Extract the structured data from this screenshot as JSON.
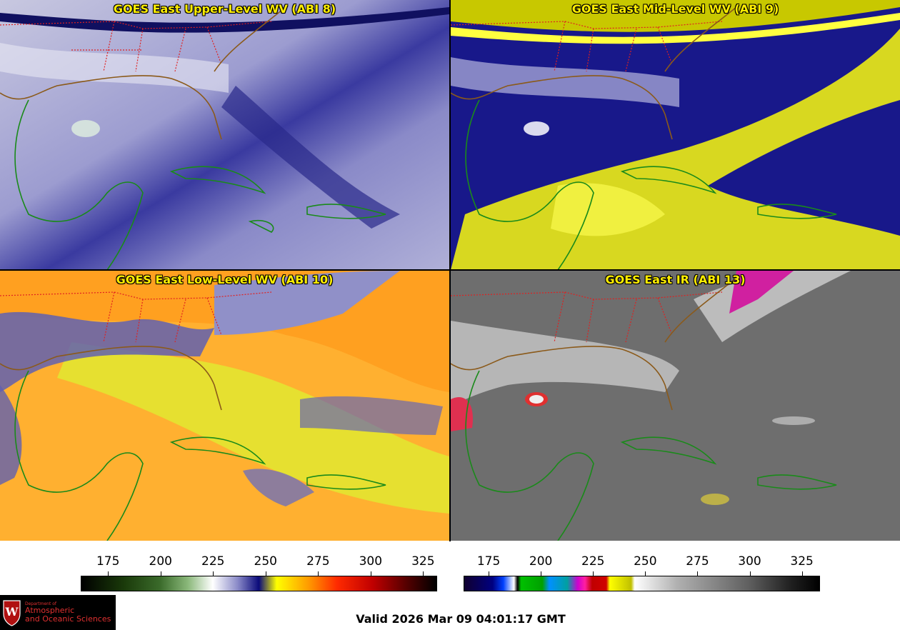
{
  "panels": [
    {
      "title": "GOES East Upper-Level WV (ABI 8)"
    },
    {
      "title": "GOES East Mid-Level WV (ABI 9)"
    },
    {
      "title": "GOES East Low-Level WV (ABI 10)"
    },
    {
      "title": "GOES East IR (ABI 13)"
    }
  ],
  "colorbar_wv": {
    "ticks": [
      "175",
      "200",
      "225",
      "250",
      "275",
      "300",
      "325"
    ],
    "range": [
      162,
      331
    ]
  },
  "colorbar_ir": {
    "ticks": [
      "175",
      "200",
      "225",
      "250",
      "275",
      "300",
      "325"
    ],
    "range": [
      163,
      333
    ]
  },
  "valid_time": "Valid 2026 Mar 09 04:01:17 GMT",
  "logo": {
    "line1": "Department of",
    "line2": "Atmospheric",
    "line3": "and Oceanic Sciences"
  },
  "colors": {
    "coast": "#1a8a1a",
    "us_coast": "#8b5a1a",
    "state_border": "#e02020",
    "title": "#ffee00"
  }
}
